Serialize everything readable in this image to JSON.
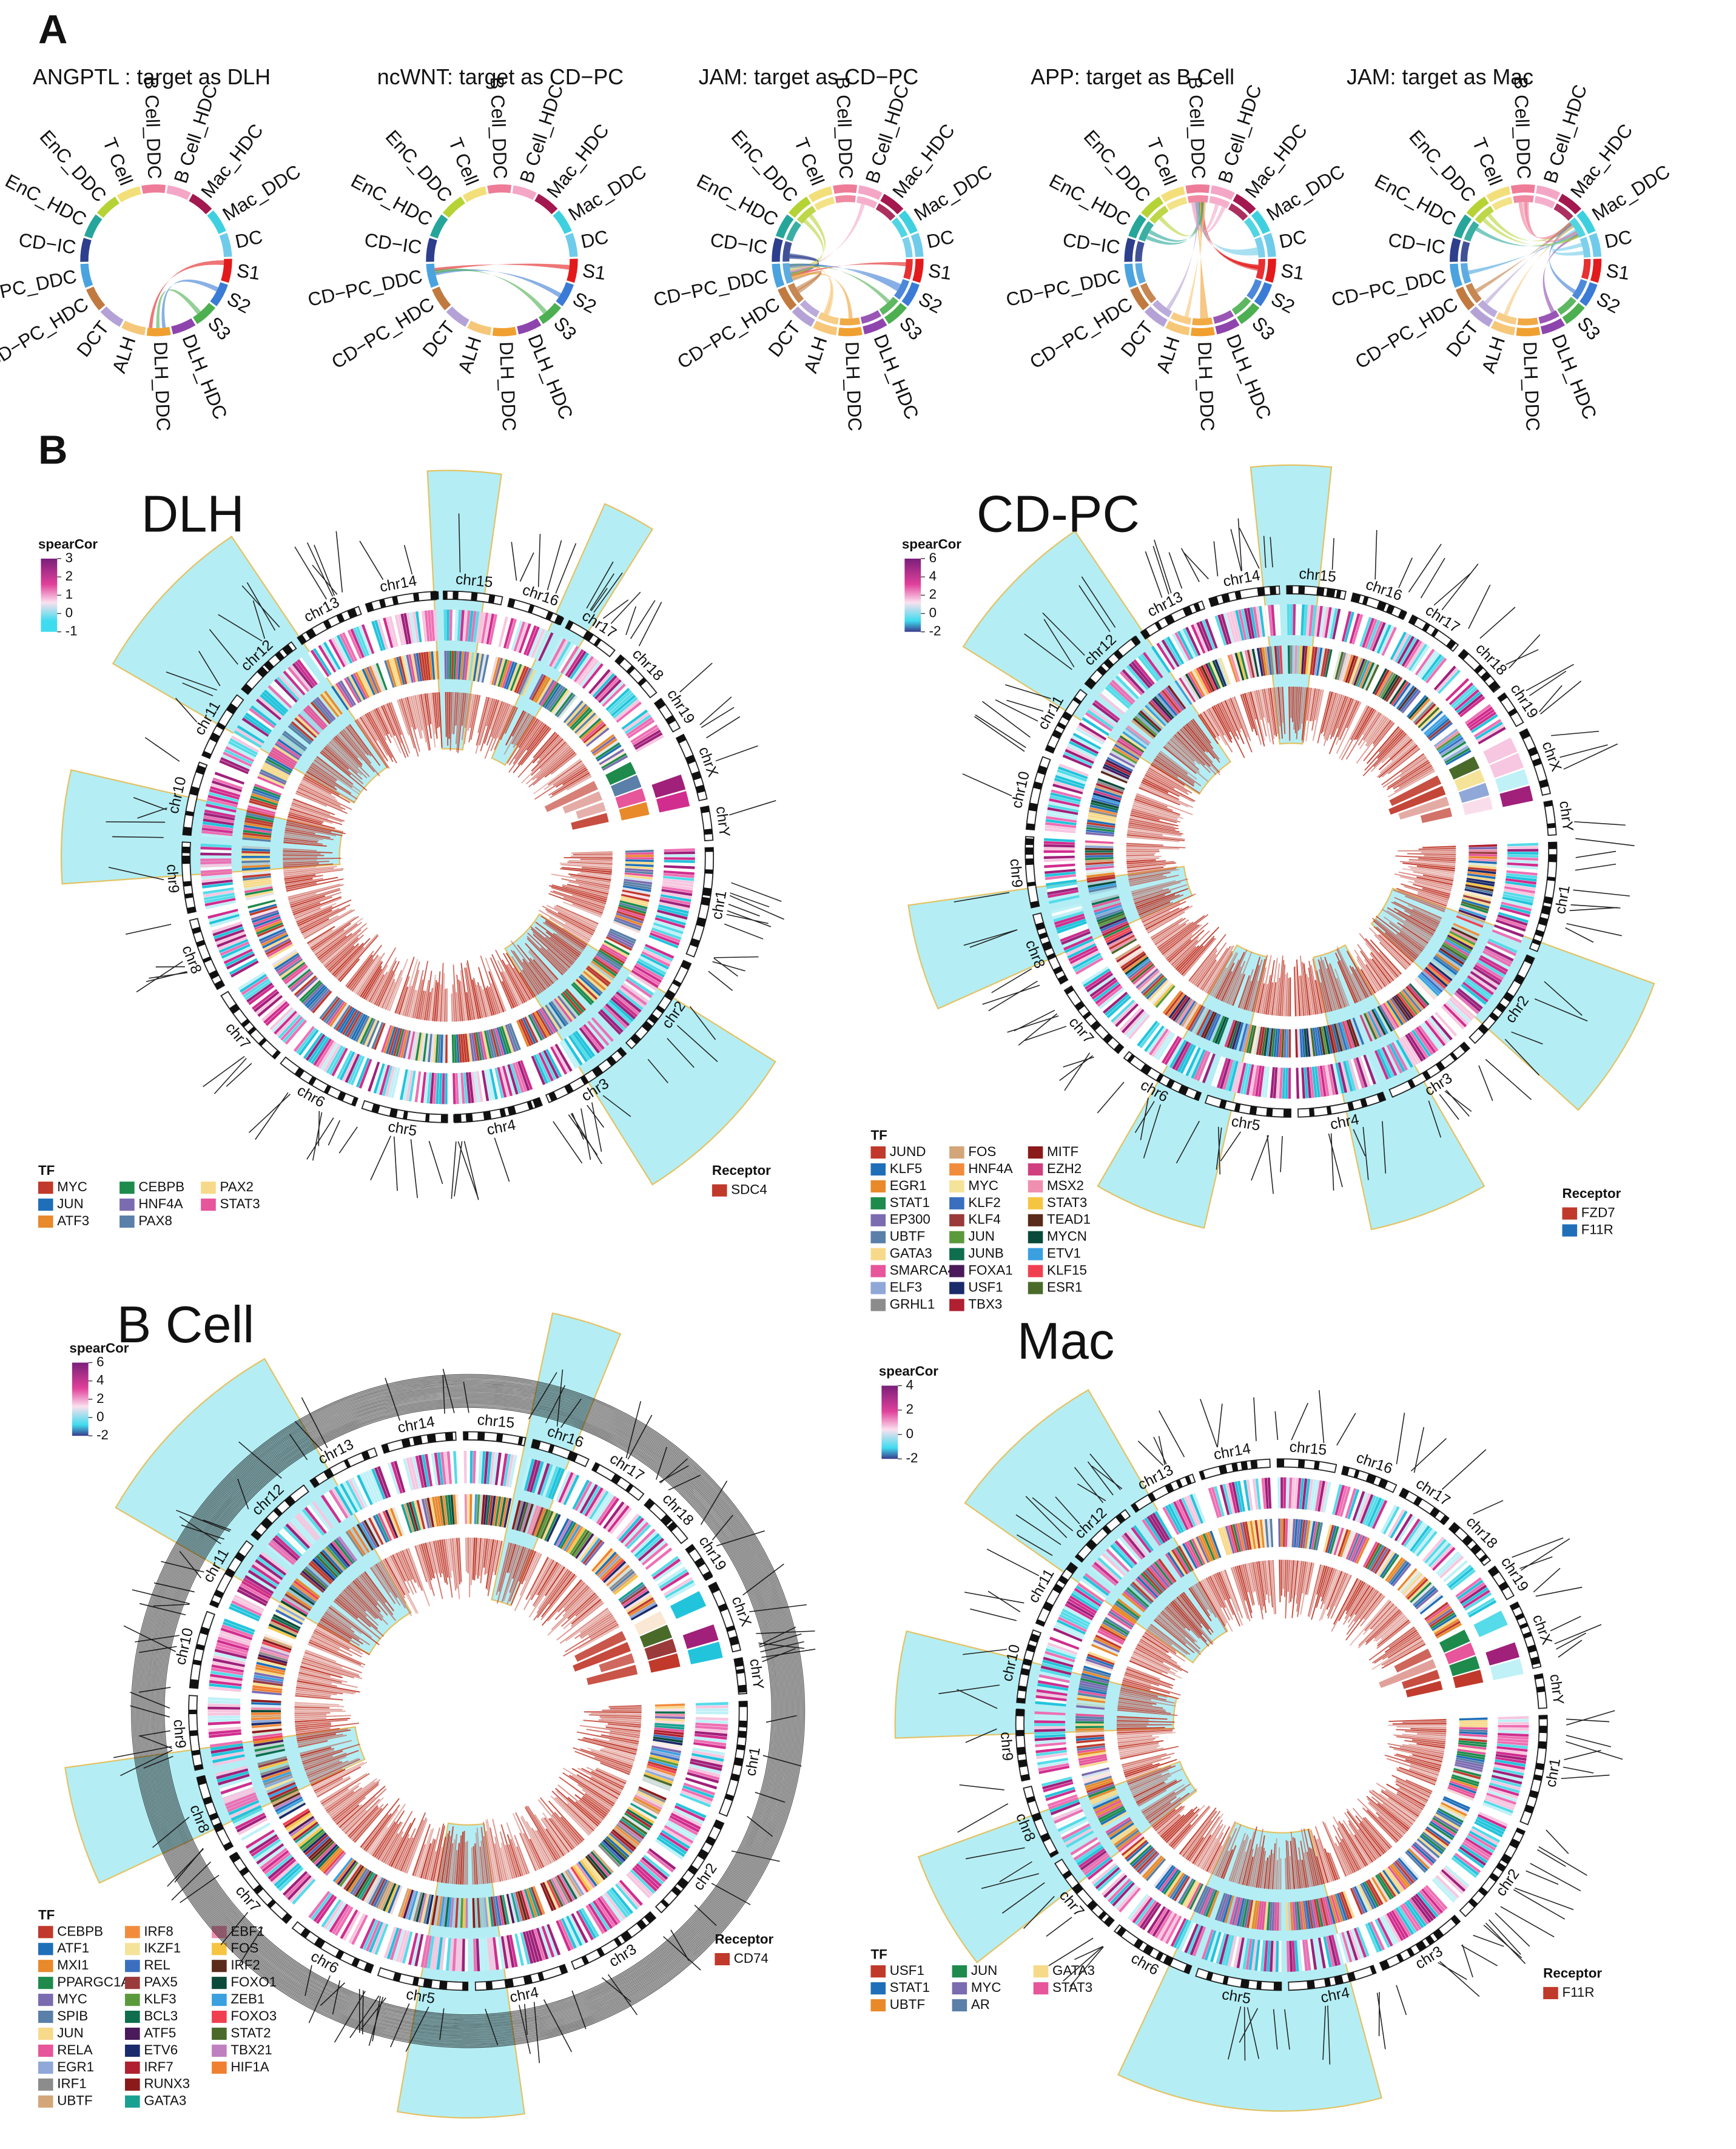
{
  "panel_a": {
    "label": "A",
    "diagrams": [
      {
        "title": "ANGPTL : target as DLH"
      },
      {
        "title": "ncWNT: target as CD−PC"
      },
      {
        "title": "JAM: target as CD−PC"
      },
      {
        "title": "APP: target as B Cell"
      },
      {
        "title": "JAM: target as Mac"
      }
    ],
    "sectors": [
      {
        "name": "B Cell_DDC",
        "color": "#ee7c98"
      },
      {
        "name": "B Cell_HDC",
        "color": "#f4a6c6"
      },
      {
        "name": "Mac_HDC",
        "color": "#a3184e"
      },
      {
        "name": "Mac_DDC",
        "color": "#3fd0e0"
      },
      {
        "name": "DC",
        "color": "#6fcbea"
      },
      {
        "name": "S1",
        "color": "#e31a1c"
      },
      {
        "name": "S2",
        "color": "#3a7bd5"
      },
      {
        "name": "S3",
        "color": "#4caf50"
      },
      {
        "name": "DLH_HDC",
        "color": "#8e44ad"
      },
      {
        "name": "DLH_DDC",
        "color": "#f0a030"
      },
      {
        "name": "ALH",
        "color": "#f6c778"
      },
      {
        "name": "DCT",
        "color": "#b4a2d6"
      },
      {
        "name": "CD−PC_HDC",
        "color": "#c07a40"
      },
      {
        "name": "CD−PC_DDC",
        "color": "#4aa3df"
      },
      {
        "name": "CD−IC",
        "color": "#2c3e8c"
      },
      {
        "name": "EnC_HDC",
        "color": "#26a69a"
      },
      {
        "name": "EnC_DDC",
        "color": "#b5d334"
      },
      {
        "name": "T Cell",
        "color": "#f3df7a"
      }
    ]
  },
  "panel_b": {
    "label": "B",
    "chromosomes": [
      "chr1",
      "chr2",
      "chr3",
      "chr4",
      "chr5",
      "chr6",
      "chr7",
      "chr8",
      "chr9",
      "chr10",
      "chr11",
      "chr12",
      "chr13",
      "chr14",
      "chr15",
      "chr16",
      "chr17",
      "chr18",
      "chr19",
      "chrX",
      "chrY"
    ],
    "plots": [
      {
        "title": "DLH",
        "scale_title": "spearCor",
        "scale_ticks": [
          3,
          2,
          1,
          0,
          -1
        ],
        "tf_title": "TF",
        "tfs": [
          {
            "name": "MYC",
            "color": "#c0392b"
          },
          {
            "name": "JUN",
            "color": "#1f6fb8"
          },
          {
            "name": "ATF3",
            "color": "#e8892a"
          },
          {
            "name": "CEBPB",
            "color": "#1e8a4c"
          },
          {
            "name": "HNF4A",
            "color": "#7b6bb0"
          },
          {
            "name": "PAX8",
            "color": "#5a7fa8"
          },
          {
            "name": "PAX2",
            "color": "#f7d98a"
          },
          {
            "name": "STAT3",
            "color": "#e7559a"
          }
        ],
        "receptor_title": "Receptor",
        "receptors": [
          {
            "name": "SDC4",
            "color": "#c0392b"
          }
        ]
      },
      {
        "title": "CD-PC",
        "scale_title": "spearCor",
        "scale_ticks": [
          6,
          4,
          2,
          0,
          -2
        ],
        "tf_title": "TF",
        "tfs": [
          {
            "name": "JUND",
            "color": "#c0392b"
          },
          {
            "name": "KLF5",
            "color": "#1f6fb8"
          },
          {
            "name": "EGR1",
            "color": "#e8892a"
          },
          {
            "name": "STAT1",
            "color": "#1e8a4c"
          },
          {
            "name": "EP300",
            "color": "#7b6bb0"
          },
          {
            "name": "UBTF",
            "color": "#5a7fa8"
          },
          {
            "name": "GATA3",
            "color": "#f7d98a"
          },
          {
            "name": "SMARCA4",
            "color": "#e7559a"
          },
          {
            "name": "ELF3",
            "color": "#8fa8d8"
          },
          {
            "name": "GRHL1",
            "color": "#8c8c8c"
          },
          {
            "name": "FOS",
            "color": "#d2a679"
          },
          {
            "name": "HNF4A",
            "color": "#f28c3c"
          },
          {
            "name": "MYC",
            "color": "#f5e39a"
          },
          {
            "name": "KLF2",
            "color": "#3a6fc0"
          },
          {
            "name": "KLF4",
            "color": "#9a3a3a"
          },
          {
            "name": "JUN",
            "color": "#5b9a3c"
          },
          {
            "name": "JUNB",
            "color": "#0e6e4e"
          },
          {
            "name": "FOXA1",
            "color": "#4a1a5a"
          },
          {
            "name": "USF1",
            "color": "#1a2a6a"
          },
          {
            "name": "TBX3",
            "color": "#b02030"
          },
          {
            "name": "MITF",
            "color": "#8b1a1a"
          },
          {
            "name": "EZH2",
            "color": "#d04080"
          },
          {
            "name": "MSX2",
            "color": "#f090b0"
          },
          {
            "name": "STAT3",
            "color": "#f5c542"
          },
          {
            "name": "TEAD1",
            "color": "#5a2a1a"
          },
          {
            "name": "MYCN",
            "color": "#0a4a3a"
          },
          {
            "name": "ETV1",
            "color": "#3aa0e0"
          },
          {
            "name": "KLF15",
            "color": "#f04050"
          },
          {
            "name": "ESR1",
            "color": "#4a6a2a"
          }
        ],
        "receptor_title": "Receptor",
        "receptors": [
          {
            "name": "FZD7",
            "color": "#c0392b"
          },
          {
            "name": "F11R",
            "color": "#1f6fb8"
          }
        ]
      },
      {
        "title": "B Cell",
        "scale_title": "spearCor",
        "scale_ticks": [
          6,
          4,
          2,
          0,
          -2
        ],
        "tf_title": "TF",
        "tfs": [
          {
            "name": "CEBPB",
            "color": "#c0392b"
          },
          {
            "name": "ATF1",
            "color": "#1f6fb8"
          },
          {
            "name": "MXI1",
            "color": "#e8892a"
          },
          {
            "name": "PPARGC1A",
            "color": "#1e8a4c"
          },
          {
            "name": "MYC",
            "color": "#7b6bb0"
          },
          {
            "name": "SPIB",
            "color": "#5a7fa8"
          },
          {
            "name": "JUN",
            "color": "#f7d98a"
          },
          {
            "name": "RELA",
            "color": "#e7559a"
          },
          {
            "name": "EGR1",
            "color": "#8fa8d8"
          },
          {
            "name": "IRF1",
            "color": "#8c8c8c"
          },
          {
            "name": "UBTF",
            "color": "#d2a679"
          },
          {
            "name": "IRF8",
            "color": "#f28c3c"
          },
          {
            "name": "IKZF1",
            "color": "#f5e39a"
          },
          {
            "name": "REL",
            "color": "#3a6fc0"
          },
          {
            "name": "PAX5",
            "color": "#9a3a3a"
          },
          {
            "name": "KLF3",
            "color": "#5b9a3c"
          },
          {
            "name": "BCL3",
            "color": "#0e6e4e"
          },
          {
            "name": "ATF5",
            "color": "#4a1a5a"
          },
          {
            "name": "ETV6",
            "color": "#1a2a6a"
          },
          {
            "name": "IRF7",
            "color": "#b02030"
          },
          {
            "name": "RUNX3",
            "color": "#8b1a1a"
          },
          {
            "name": "GATA3",
            "color": "#1aa090"
          },
          {
            "name": "EBF1",
            "color": "#f090b0"
          },
          {
            "name": "FOS",
            "color": "#f5c542"
          },
          {
            "name": "IRF2",
            "color": "#5a2a1a"
          },
          {
            "name": "FOXO1",
            "color": "#0a4a3a"
          },
          {
            "name": "ZEB1",
            "color": "#3aa0e0"
          },
          {
            "name": "FOXO3",
            "color": "#f04050"
          },
          {
            "name": "STAT2",
            "color": "#4a6a2a"
          },
          {
            "name": "TBX21",
            "color": "#c080c0"
          },
          {
            "name": "HIF1A",
            "color": "#f08030"
          }
        ],
        "receptor_title": "Receptor",
        "receptors": [
          {
            "name": "CD74",
            "color": "#c0392b"
          }
        ]
      },
      {
        "title": "Mac",
        "scale_title": "spearCor",
        "scale_ticks": [
          4,
          2,
          0,
          -2
        ],
        "tf_title": "TF",
        "tfs": [
          {
            "name": "USF1",
            "color": "#c0392b"
          },
          {
            "name": "STAT1",
            "color": "#1f6fb8"
          },
          {
            "name": "UBTF",
            "color": "#e8892a"
          },
          {
            "name": "JUN",
            "color": "#1e8a4c"
          },
          {
            "name": "MYC",
            "color": "#7b6bb0"
          },
          {
            "name": "AR",
            "color": "#5a7fa8"
          },
          {
            "name": "GATA3",
            "color": "#f7d98a"
          },
          {
            "name": "STAT3",
            "color": "#e7559a"
          }
        ],
        "receptor_title": "Receptor",
        "receptors": [
          {
            "name": "F11R",
            "color": "#c0392b"
          }
        ]
      }
    ]
  }
}
